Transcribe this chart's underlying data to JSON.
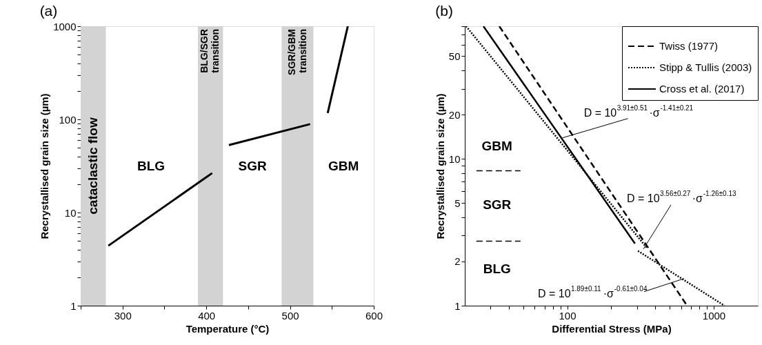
{
  "chart_data": [
    {
      "type": "line",
      "title": "(a)",
      "xlabel": "Temperature (°C)",
      "ylabel": "Recrystallised grain size (µm)",
      "log": "y",
      "grid": false,
      "legend": false,
      "xlim": [
        250,
        600
      ],
      "ylim": [
        1,
        1000
      ],
      "xticks": [
        {
          "value": 250,
          "label": null
        },
        300,
        {
          "value": 350,
          "label": null
        },
        400,
        {
          "value": 450,
          "label": null
        },
        500,
        {
          "value": 550,
          "label": null
        },
        600
      ],
      "yticks": [
        1,
        {
          "value": 2,
          "label": null
        },
        {
          "value": 3,
          "label": null
        },
        {
          "value": 4,
          "label": null
        },
        {
          "value": 5,
          "label": null
        },
        {
          "value": 6,
          "label": null
        },
        {
          "value": 7,
          "label": null
        },
        {
          "value": 8,
          "label": null
        },
        {
          "value": 9,
          "label": null
        },
        10,
        {
          "value": 20,
          "label": null
        },
        {
          "value": 30,
          "label": null
        },
        {
          "value": 40,
          "label": null
        },
        {
          "value": 50,
          "label": null
        },
        {
          "value": 60,
          "label": null
        },
        {
          "value": 70,
          "label": null
        },
        {
          "value": 80,
          "label": null
        },
        {
          "value": 90,
          "label": null
        },
        100,
        {
          "value": 200,
          "label": null
        },
        {
          "value": 300,
          "label": null
        },
        {
          "value": 400,
          "label": null
        },
        {
          "value": 500,
          "label": null
        },
        {
          "value": 600,
          "label": null
        },
        {
          "value": 700,
          "label": null
        },
        {
          "value": 800,
          "label": null
        },
        {
          "value": 900,
          "label": null
        },
        1000
      ],
      "series": [
        {
          "color": "#000000",
          "line_style": "solid",
          "x": [
            283,
            407
          ],
          "values": [
            4.4,
            26.5
          ]
        },
        {
          "color": "#000000",
          "line_style": "solid",
          "x": [
            427,
            524
          ],
          "values": [
            53,
            89
          ]
        },
        {
          "color": "#000000",
          "line_style": "solid",
          "x": [
            545,
            569
          ],
          "values": [
            117,
            1000
          ]
        }
      ],
      "bands": [
        {
          "axis": "x",
          "from": 250,
          "to": 280,
          "label": "cataclastic flow",
          "color": "#d3d3d3"
        },
        {
          "axis": "x",
          "from": 390,
          "to": 420,
          "label": "BLG/SGR transition",
          "color": "#d3d3d3"
        },
        {
          "axis": "x",
          "from": 490,
          "to": 528,
          "label": "SGR/GBM transition",
          "color": "#d3d3d3"
        }
      ],
      "annotations": [
        "BLG",
        "SGR",
        "GBM"
      ]
    },
    {
      "type": "line",
      "title": "(b)",
      "xlabel": "Differential Stress (MPa)",
      "ylabel": "Recrystallised grain size (µm)",
      "log": "xy",
      "grid": false,
      "legend": "top right",
      "xlim": [
        20,
        2000
      ],
      "ylim": [
        1,
        80
      ],
      "xticks": [
        {
          "value": 30,
          "label": null
        },
        {
          "value": 40,
          "label": null
        },
        {
          "value": 50,
          "label": null
        },
        {
          "value": 60,
          "label": null
        },
        {
          "value": 70,
          "label": null
        },
        {
          "value": 80,
          "label": null
        },
        {
          "value": 90,
          "label": null
        },
        100,
        {
          "value": 200,
          "label": null
        },
        {
          "value": 300,
          "label": null
        },
        {
          "value": 400,
          "label": null
        },
        {
          "value": 500,
          "label": null
        },
        {
          "value": 600,
          "label": null
        },
        {
          "value": 700,
          "label": null
        },
        {
          "value": 800,
          "label": null
        },
        {
          "value": 900,
          "label": null
        },
        1000
      ],
      "yticks": [
        1,
        2,
        {
          "value": 3,
          "label": null
        },
        {
          "value": 4,
          "label": null
        },
        5,
        {
          "value": 6,
          "label": null
        },
        {
          "value": 7,
          "label": null
        },
        {
          "value": 8,
          "label": null
        },
        {
          "value": 9,
          "label": null
        },
        10,
        20,
        {
          "value": 30,
          "label": null
        },
        {
          "value": 40,
          "label": null
        },
        50,
        {
          "value": 60,
          "label": null
        },
        {
          "value": 70,
          "label": null
        },
        {
          "value": 80,
          "label": null
        }
      ],
      "series": [
        {
          "name": "Twiss (1977)",
          "color": "#000000",
          "line_style": "dashed",
          "x": [
            34.4,
            658
          ],
          "values": [
            80,
            1
          ]
        },
        {
          "name": "Stipp & Tullis (2003)",
          "color": "#000000",
          "line_style": "dotted",
          "x": [
            20.4,
            350,
            325,
            304,
            1184
          ],
          "values": [
            80,
            2.47,
            null,
            2.36,
            1
          ]
        },
        {
          "name": "Cross et al. (2017)",
          "color": "#000000",
          "line_style": "solid",
          "x": [
            26.8,
            290
          ],
          "values": [
            80,
            2.65
          ]
        },
        {
          "color": "#000000",
          "line_style": "dashed",
          "x": [
            24,
            48
          ],
          "values": [
            8.3,
            8.3
          ]
        },
        {
          "color": "#000000",
          "line_style": "dashed",
          "x": [
            24,
            48
          ],
          "values": [
            2.75,
            2.75
          ]
        }
      ],
      "annotations": [
        "GBM",
        "SGR",
        "BLG",
        {
          "text": "D = 10$^{3.91±0.51}$·σ$^{-1.41±0.21}$",
          "x": 92.8,
          "y": 13.9
        },
        {
          "text": "D = 10$^{3.56±0.27}$·σ$^{-1.26±0.13}$",
          "x": 331,
          "y": 2.43
        },
        {
          "text": "D = 10$^{1.89±0.11}$·σ$^{-0.61±0.04}$",
          "x": 627,
          "y": 1.53
        }
      ]
    }
  ]
}
